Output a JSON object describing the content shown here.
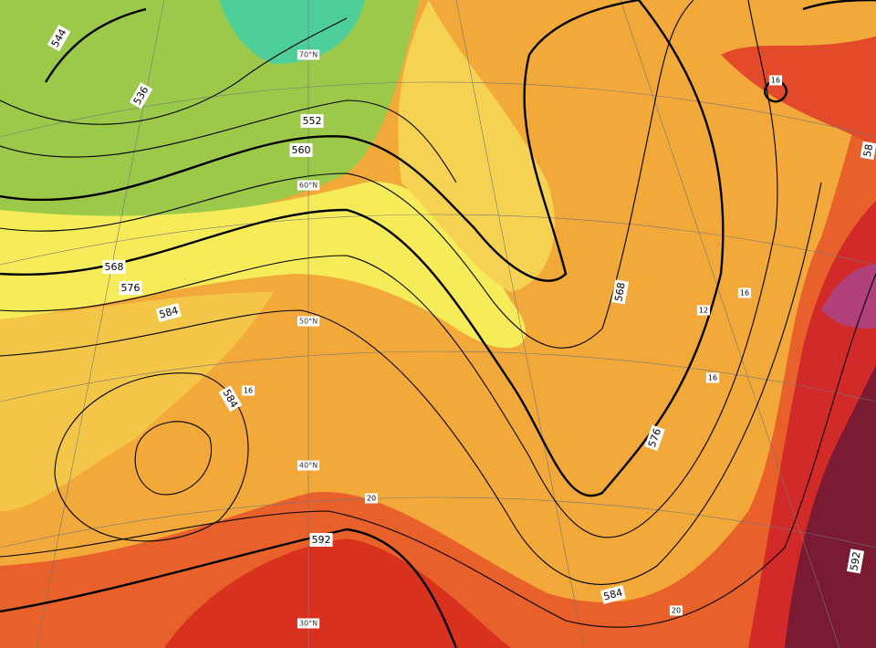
{
  "latitude_labels": [
    "70°N",
    "60°N",
    "50°N",
    "40°N",
    "30°N"
  ],
  "height_labels": [
    "544",
    "536",
    "552",
    "560",
    "568",
    "576",
    "584",
    "584",
    "592",
    "568",
    "576",
    "584",
    "58",
    "592"
  ],
  "temperature_labels": [
    "16",
    "16",
    "16",
    "12",
    "16",
    "20",
    "20"
  ]
}
